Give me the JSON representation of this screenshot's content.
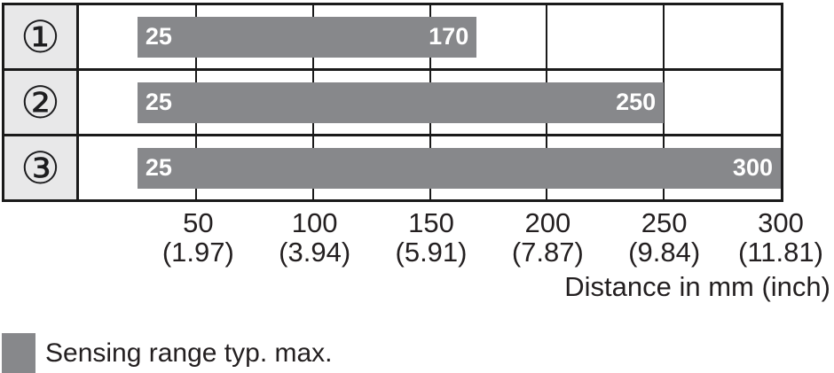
{
  "chart_data": {
    "type": "bar",
    "orientation": "horizontal",
    "title": "",
    "xlabel": "Distance in mm (inch)",
    "xlim": [
      0,
      300
    ],
    "grid": true,
    "gridline_values_mm": [
      50,
      100,
      150,
      200,
      250
    ],
    "rows": [
      {
        "id": "1",
        "circled_label": "①",
        "start_mm": 25,
        "end_mm": 170,
        "start_label": "25",
        "end_label": "170"
      },
      {
        "id": "2",
        "circled_label": "②",
        "start_mm": 25,
        "end_mm": 250,
        "start_label": "25",
        "end_label": "250"
      },
      {
        "id": "3",
        "circled_label": "③",
        "start_mm": 25,
        "end_mm": 300,
        "start_label": "25",
        "end_label": "300"
      }
    ],
    "ticks": [
      {
        "value": 50,
        "mm": "50",
        "inch": "(1.97)"
      },
      {
        "value": 100,
        "mm": "100",
        "inch": "(3.94)"
      },
      {
        "value": 150,
        "mm": "150",
        "inch": "(5.91)"
      },
      {
        "value": 200,
        "mm": "200",
        "inch": "(7.87)"
      },
      {
        "value": 250,
        "mm": "250",
        "inch": "(9.84)"
      },
      {
        "value": 300,
        "mm": "300",
        "inch": "(11.81)"
      }
    ],
    "legend": [
      {
        "label": "Sensing range typ. max.",
        "swatch_color": "#87888b"
      }
    ],
    "legend_position": "bottom-left"
  },
  "colors": {
    "bar": "#87888b",
    "row_header_bg": "#e8e8e9",
    "line": "#1a1a1a",
    "text": "#231f20",
    "bar_label": "#ffffff"
  }
}
